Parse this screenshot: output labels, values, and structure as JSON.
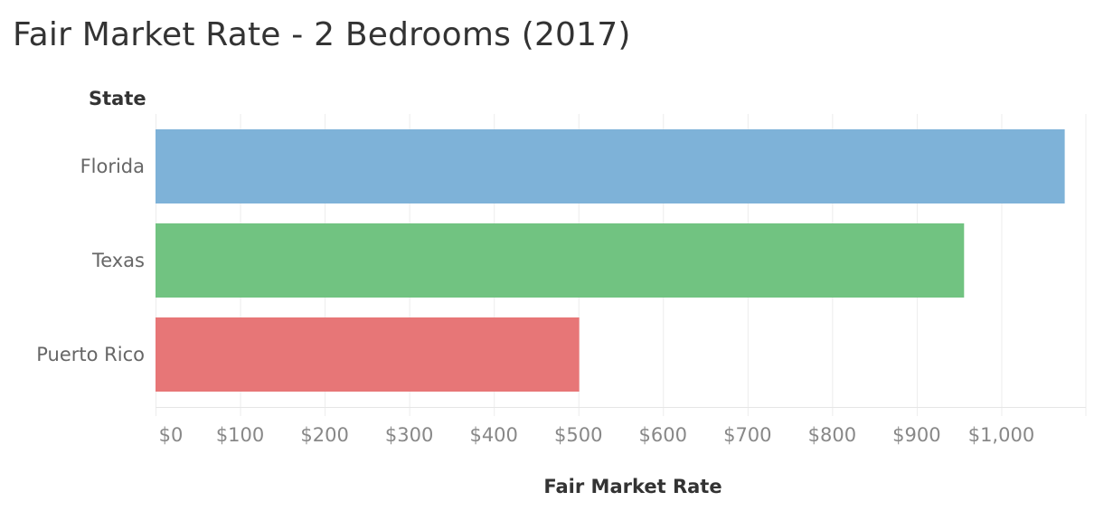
{
  "chart_data": {
    "type": "bar",
    "orientation": "horizontal",
    "title": "Fair Market Rate - 2 Bedrooms (2017)",
    "row_header": "State",
    "categories": [
      "Florida",
      "Texas",
      "Puerto Rico"
    ],
    "values": [
      1075,
      956,
      501
    ],
    "colors": [
      "#7eb2d8",
      "#71c381",
      "#e77677"
    ],
    "xlabel": "Fair Market Rate",
    "xlim": [
      0,
      1100
    ],
    "xticks": [
      0,
      100,
      200,
      300,
      400,
      500,
      600,
      700,
      800,
      900,
      1000
    ],
    "xtick_labels": [
      "$0",
      "$100",
      "$200",
      "$300",
      "$400",
      "$500",
      "$600",
      "$700",
      "$800",
      "$900",
      "$1,000"
    ],
    "grid": true,
    "legend": "none"
  }
}
